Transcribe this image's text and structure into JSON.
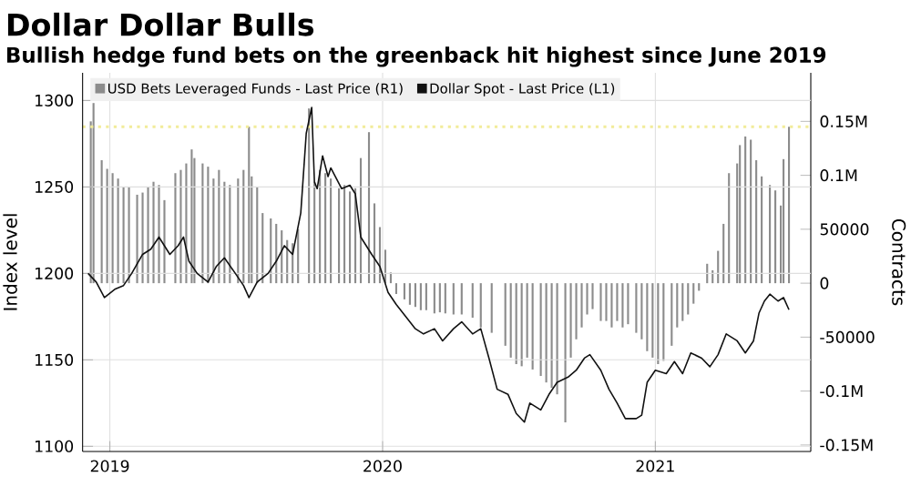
{
  "chart_data": {
    "type": "line",
    "title": "Dollar Dollar Bulls",
    "subtitle": "Bullish hedge fund bets on the greenback hit highest since June 2019",
    "ylabel": "Index level",
    "y2label": "Contracts",
    "xlim": [
      2018.9,
      2021.57
    ],
    "xticks": [
      2019,
      2020,
      2021
    ],
    "ylim": [
      1097,
      1316
    ],
    "yticks": [
      1100,
      1150,
      1200,
      1250,
      1300
    ],
    "y2lim": [
      -156000,
      195000
    ],
    "y2ticks": [
      {
        "value": 150000,
        "label": "0.15M"
      },
      {
        "value": 100000,
        "label": "0.1M"
      },
      50000,
      0,
      -50000,
      {
        "value": -100000,
        "label": "-0.1M"
      },
      {
        "value": -150000,
        "label": "-0.15M"
      }
    ],
    "grid": true,
    "legend": "top left",
    "ref_lines": [
      {
        "axis": "y2",
        "value": 145000,
        "color": "#f2ec9a",
        "line_style": "dotted"
      }
    ],
    "series": [
      {
        "name": "USD Bets Leveraged Funds - Last Price (R1)",
        "type": "bar",
        "axis": "y2",
        "color": "#8c8c8c",
        "x": [
          2018.93,
          2018.94,
          2018.97,
          2018.99,
          2019.01,
          2019.03,
          2019.05,
          2019.07,
          2019.1,
          2019.12,
          2019.14,
          2019.16,
          2019.18,
          2019.2,
          2019.24,
          2019.26,
          2019.28,
          2019.3,
          2019.31,
          2019.34,
          2019.36,
          2019.38,
          2019.4,
          2019.42,
          2019.44,
          2019.47,
          2019.49,
          2019.51,
          2019.52,
          2019.54,
          2019.56,
          2019.59,
          2019.61,
          2019.63,
          2019.65,
          2019.67,
          2019.69,
          2019.73,
          2019.75,
          2019.77,
          2019.79,
          2019.81,
          2019.84,
          2019.86,
          2019.88,
          2019.9,
          2019.92,
          2019.95,
          2019.97,
          2019.99,
          2020.01,
          2020.03,
          2020.05,
          2020.08,
          2020.1,
          2020.12,
          2020.14,
          2020.16,
          2020.19,
          2020.21,
          2020.23,
          2020.26,
          2020.29,
          2020.33,
          2020.36,
          2020.4,
          2020.45,
          2020.47,
          2020.49,
          2020.51,
          2020.53,
          2020.55,
          2020.58,
          2020.6,
          2020.62,
          2020.64,
          2020.67,
          2020.69,
          2020.71,
          2020.73,
          2020.75,
          2020.77,
          2020.8,
          2020.82,
          2020.84,
          2020.86,
          2020.88,
          2020.9,
          2020.93,
          2020.95,
          2020.97,
          2020.99,
          2021.01,
          2021.03,
          2021.06,
          2021.08,
          2021.1,
          2021.12,
          2021.14,
          2021.16,
          2021.19,
          2021.21,
          2021.23,
          2021.25,
          2021.27,
          2021.3,
          2021.31,
          2021.33,
          2021.35,
          2021.37,
          2021.39,
          2021.42,
          2021.44,
          2021.46,
          2021.47,
          2021.49
        ],
        "values": [
          150000,
          167000,
          114000,
          106000,
          102000,
          97000,
          89000,
          89000,
          82000,
          84000,
          89000,
          94000,
          91000,
          77000,
          102000,
          105000,
          111000,
          124000,
          116000,
          111000,
          108000,
          97000,
          105000,
          94000,
          91000,
          97000,
          105000,
          145000,
          99000,
          89000,
          65000,
          60000,
          55000,
          49000,
          40000,
          37000,
          50000,
          162000,
          94000,
          105000,
          102000,
          97000,
          88000,
          91000,
          85000,
          88000,
          116000,
          140000,
          74000,
          52000,
          31000,
          10000,
          -10000,
          -15000,
          -20000,
          -22000,
          -25000,
          -25000,
          -28000,
          -27000,
          -28000,
          -29000,
          -29000,
          -32000,
          -41000,
          -46000,
          -58000,
          -69000,
          -75000,
          -77000,
          -69000,
          -80000,
          -86000,
          -92000,
          -97000,
          -103000,
          -129000,
          -69000,
          -52000,
          -41000,
          -29000,
          -24000,
          -35000,
          -35000,
          -41000,
          -35000,
          -41000,
          -38000,
          -46000,
          -52000,
          -63000,
          -69000,
          -75000,
          -72000,
          -58000,
          -41000,
          -35000,
          -29000,
          -19000,
          -7000,
          18000,
          12000,
          30000,
          55000,
          102000,
          111000,
          128000,
          136000,
          133000,
          114000,
          99000,
          91000,
          86000,
          72000,
          115000,
          145000
        ]
      },
      {
        "name": "Dollar Spot - Last Price (L1)",
        "color": "#111111",
        "x": [
          2018.92,
          2018.95,
          2018.98,
          2019.02,
          2019.05,
          2019.08,
          2019.12,
          2019.15,
          2019.18,
          2019.22,
          2019.25,
          2019.27,
          2019.29,
          2019.32,
          2019.36,
          2019.39,
          2019.42,
          2019.46,
          2019.49,
          2019.51,
          2019.54,
          2019.58,
          2019.61,
          2019.64,
          2019.67,
          2019.7,
          2019.72,
          2019.74,
          2019.75,
          2019.76,
          2019.78,
          2019.8,
          2019.81,
          2019.85,
          2019.88,
          2019.9,
          2019.92,
          2019.96,
          2019.99,
          2020.02,
          2020.05,
          2020.09,
          2020.12,
          2020.15,
          2020.19,
          2020.22,
          2020.26,
          2020.29,
          2020.33,
          2020.36,
          2020.39,
          2020.42,
          2020.46,
          2020.49,
          2020.52,
          2020.54,
          2020.58,
          2020.61,
          2020.64,
          2020.68,
          2020.71,
          2020.74,
          2020.76,
          2020.8,
          2020.83,
          2020.86,
          2020.89,
          2020.93,
          2020.95,
          2020.97,
          2021.0,
          2021.04,
          2021.07,
          2021.1,
          2021.13,
          2021.17,
          2021.2,
          2021.23,
          2021.26,
          2021.3,
          2021.33,
          2021.36,
          2021.38,
          2021.4,
          2021.42,
          2021.45,
          2021.47,
          2021.49
        ],
        "values": [
          1200,
          1195,
          1186,
          1191,
          1193,
          1200,
          1211,
          1214,
          1221,
          1211,
          1216,
          1221,
          1207,
          1200,
          1195,
          1204,
          1209,
          1200,
          1193,
          1186,
          1195,
          1200,
          1207,
          1216,
          1211,
          1235,
          1281,
          1296,
          1253,
          1249,
          1268,
          1256,
          1261,
          1249,
          1251,
          1246,
          1221,
          1211,
          1204,
          1189,
          1182,
          1174,
          1168,
          1165,
          1168,
          1161,
          1168,
          1172,
          1165,
          1168,
          1151,
          1133,
          1130,
          1119,
          1114,
          1125,
          1121,
          1130,
          1137,
          1140,
          1144,
          1151,
          1153,
          1144,
          1133,
          1125,
          1116,
          1116,
          1118,
          1137,
          1144,
          1142,
          1149,
          1142,
          1154,
          1151,
          1146,
          1153,
          1165,
          1161,
          1154,
          1161,
          1177,
          1184,
          1188,
          1184,
          1186,
          1179
        ]
      }
    ]
  }
}
